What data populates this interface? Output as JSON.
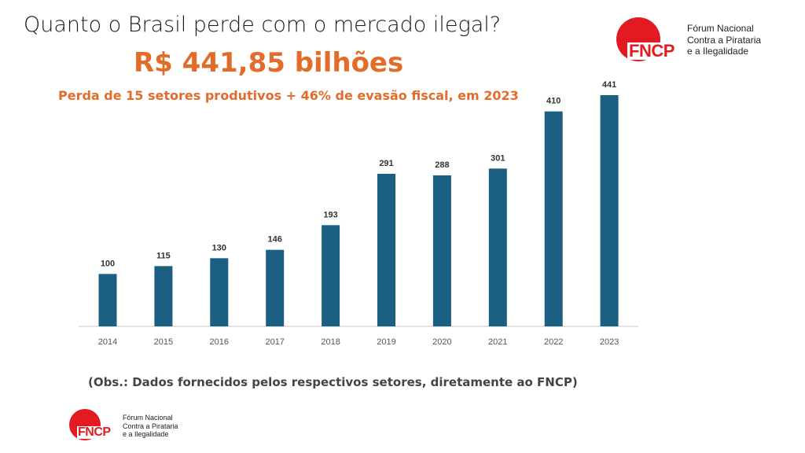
{
  "page": {
    "title": "Quanto o Brasil perde com o mercado ilegal?",
    "headline": "R$ 441,85 bilhões",
    "subtitle": "Perda de 15 setores produtivos + 46% de evasão fiscal, em 2023",
    "note": "(Obs.: Dados fornecidos pelos respectivos setores, diretamente ao FNCP)"
  },
  "logo": {
    "brand": "FNCP",
    "line1": "Fórum Nacional",
    "line2": "Contra a Pirataria",
    "line3": "e a Ilegalidade"
  },
  "colors": {
    "bar": "#1b5f82",
    "accent": "#e36c2b",
    "logo_red": "#e21a22"
  },
  "chart_data": {
    "type": "bar",
    "title": "",
    "xlabel": "",
    "ylabel": "",
    "categories": [
      "2014",
      "2015",
      "2016",
      "2017",
      "2018",
      "2019",
      "2020",
      "2021",
      "2022",
      "2023"
    ],
    "values": [
      100,
      115,
      130,
      146,
      193,
      291,
      288,
      301,
      410,
      441
    ],
    "ylim": [
      0,
      441
    ],
    "data_labels": true,
    "grid": false,
    "legend": "none"
  }
}
